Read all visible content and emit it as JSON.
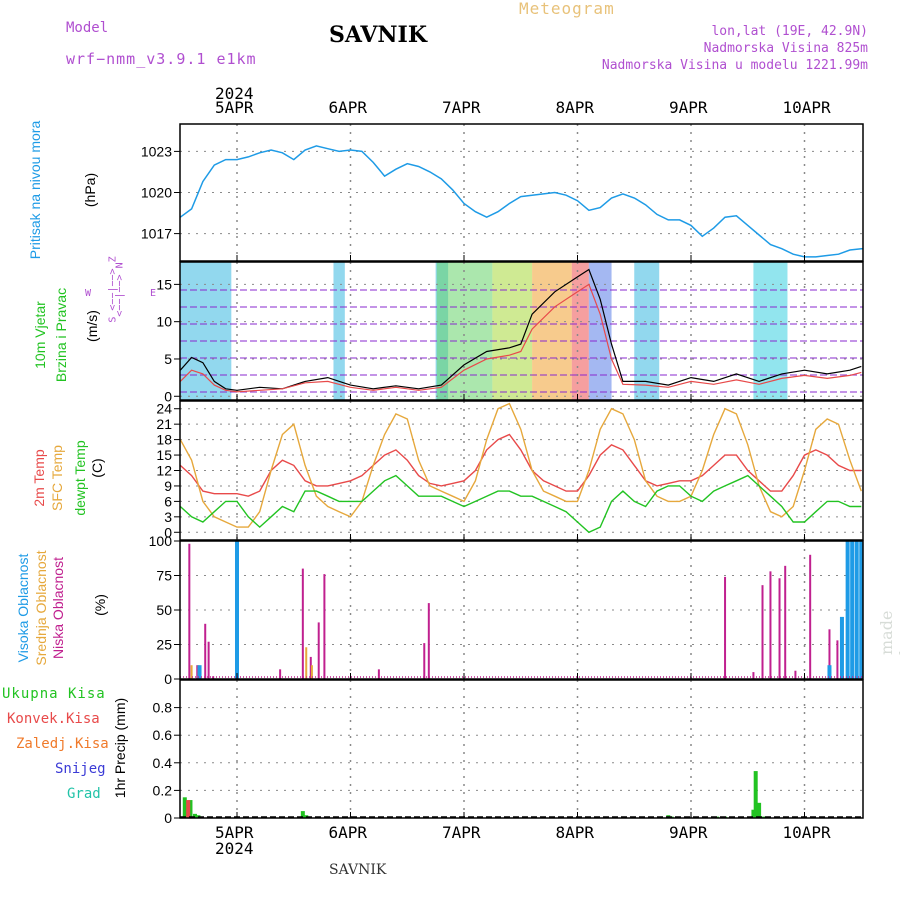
{
  "header": {
    "model_label": "Model",
    "model_name": "wrf−nmm_v3.9.1 e1km",
    "title": "SAVNIK",
    "meteogram_label": "Meteogram",
    "lonlat": "lon,lat (19E, 42.9N)",
    "altitude": "Nadmorska Visina 825m",
    "model_altitude": "Nadmorska Visina u modelu 1221.99m"
  },
  "footer": {
    "station": "SAVNIK",
    "watermark": "made by Angel"
  },
  "axis": {
    "year": "2024",
    "dates": [
      "5APR",
      "6APR",
      "7APR",
      "8APR",
      "9APR",
      "10APR"
    ]
  },
  "panel_labels": {
    "pressure": {
      "name": "Pritisak na nivou mora",
      "unit": "(hPa)"
    },
    "wind": {
      "name1": "10m Vjetar",
      "name2": "Brzina i Pravac",
      "unit": "(m/s)",
      "compass_w": "W",
      "compass_e": "E",
      "compass_n": "<−−|−−> N",
      "compass_s": "S <−−|−−> Z"
    },
    "temp": {
      "l1": "2m Temp",
      "l2": "SFC Temp",
      "l3": "dewpt Temp",
      "unit": "(C)"
    },
    "cloud": {
      "l1": "Visoka Oblacnost",
      "l2": "Srednja Oblacnost",
      "l3": "Niska Oblacnost",
      "unit": "(%)"
    },
    "precip": {
      "l1": "Ukupna Kisa",
      "l2": "Konvek.Kisa",
      "l3": "Zaledj.Kisa",
      "l4": "Snijeg",
      "l5": "Grad",
      "unit": "1hr Precip (mm)"
    }
  },
  "colors": {
    "pressure": "#1e9be6",
    "t2m": "#e84a4a",
    "sfc": "#e6a83c",
    "dew": "#22c322",
    "high_cloud": "#1e9be6",
    "mid_cloud": "#e6a83c",
    "low_cloud": "#c0208f",
    "total_rain": "#22c322",
    "conv_rain": "#e84a4a",
    "frz_rain": "#f07a2a",
    "snow": "#3b3bd6",
    "hail": "#22c3a8"
  },
  "chart_data": [
    {
      "type": "line",
      "panel": "pressure",
      "ylim": [
        1015,
        1025
      ],
      "yticks": [
        "1017",
        "1020",
        "1023"
      ],
      "x": [
        -0.5,
        -0.4,
        -0.3,
        -0.2,
        -0.1,
        0,
        0.1,
        0.2,
        0.3,
        0.4,
        0.5,
        0.6,
        0.7,
        0.8,
        0.9,
        1.0,
        1.1,
        1.2,
        1.3,
        1.4,
        1.5,
        1.6,
        1.7,
        1.8,
        1.9,
        2.0,
        2.1,
        2.2,
        2.3,
        2.4,
        2.5,
        2.6,
        2.7,
        2.8,
        2.9,
        3.0,
        3.1,
        3.2,
        3.3,
        3.4,
        3.5,
        3.6,
        3.7,
        3.8,
        3.9,
        4.0,
        4.1,
        4.2,
        4.3,
        4.4,
        4.5,
        4.6,
        4.7,
        4.8,
        4.9,
        5.0,
        5.1,
        5.2,
        5.3,
        5.4,
        5.5,
        5.56
      ],
      "values": [
        1018.2,
        1018.8,
        1020.8,
        1022.0,
        1022.4,
        1022.4,
        1022.6,
        1022.9,
        1023.1,
        1022.9,
        1022.4,
        1023.1,
        1023.4,
        1023.2,
        1023.0,
        1023.1,
        1023.0,
        1022.2,
        1021.2,
        1021.7,
        1022.1,
        1021.9,
        1021.5,
        1021.0,
        1020.2,
        1019.2,
        1018.6,
        1018.2,
        1018.6,
        1019.2,
        1019.7,
        1019.8,
        1019.9,
        1020.0,
        1019.8,
        1019.4,
        1018.7,
        1018.9,
        1019.6,
        1019.9,
        1019.6,
        1019.1,
        1018.4,
        1018.0,
        1018.0,
        1017.6,
        1016.8,
        1017.4,
        1018.2,
        1018.3,
        1017.6,
        1016.9,
        1016.2,
        1015.9,
        1015.5,
        1015.3,
        1015.3,
        1015.4,
        1015.5,
        1015.8,
        1015.9,
        1015.9
      ]
    },
    {
      "type": "line",
      "panel": "wind",
      "ylim": [
        -0.5,
        18
      ],
      "yticks": [
        "0",
        "5",
        "10",
        "15"
      ],
      "x": [
        -0.5,
        -0.4,
        -0.3,
        -0.2,
        -0.1,
        0,
        0.2,
        0.4,
        0.6,
        0.8,
        1.0,
        1.2,
        1.4,
        1.6,
        1.8,
        2.0,
        2.2,
        2.4,
        2.5,
        2.6,
        2.8,
        3.0,
        3.1,
        3.2,
        3.3,
        3.4,
        3.6,
        3.8,
        4.0,
        4.2,
        4.4,
        4.6,
        4.8,
        5.0,
        5.2,
        5.4,
        5.5
      ],
      "series": [
        {
          "values": [
            3.5,
            5.2,
            4.5,
            2.0,
            1.0,
            0.8,
            1.2,
            1.0,
            2.0,
            2.5,
            1.5,
            1.0,
            1.4,
            1.0,
            1.5,
            4.2,
            6.0,
            6.5,
            7.0,
            11,
            14,
            16,
            17,
            13,
            7,
            2,
            2,
            1.5,
            2.5,
            2.0,
            3.0,
            2.0,
            3.0,
            3.5,
            3.0,
            3.5,
            4.0
          ]
        },
        {
          "values": [
            2.0,
            3.5,
            3.0,
            1.5,
            0.8,
            0.6,
            0.8,
            1.0,
            1.8,
            2.0,
            1.2,
            0.8,
            1.2,
            0.8,
            1.2,
            3.5,
            5.0,
            5.5,
            6.0,
            9.0,
            12,
            14,
            15,
            11,
            5,
            1.6,
            1.5,
            1.2,
            2.0,
            1.6,
            2.2,
            1.6,
            2.4,
            2.8,
            2.4,
            2.8,
            3.2
          ]
        }
      ]
    },
    {
      "type": "line",
      "panel": "temp",
      "ylim": [
        -1.5,
        25.5
      ],
      "yticks": [
        "0",
        "3",
        "6",
        "9",
        "12",
        "15",
        "18",
        "21",
        "24"
      ],
      "x": [
        -0.5,
        -0.4,
        -0.3,
        -0.2,
        -0.1,
        0,
        0.1,
        0.2,
        0.3,
        0.4,
        0.5,
        0.6,
        0.7,
        0.8,
        0.9,
        1.0,
        1.1,
        1.2,
        1.3,
        1.4,
        1.5,
        1.6,
        1.7,
        1.8,
        1.9,
        2.0,
        2.1,
        2.2,
        2.3,
        2.4,
        2.5,
        2.6,
        2.7,
        2.8,
        2.9,
        3.0,
        3.1,
        3.2,
        3.3,
        3.4,
        3.5,
        3.6,
        3.7,
        3.8,
        3.9,
        4.0,
        4.1,
        4.2,
        4.3,
        4.4,
        4.5,
        4.6,
        4.7,
        4.8,
        4.9,
        5.0,
        5.1,
        5.2,
        5.3,
        5.4,
        5.5
      ],
      "series": [
        {
          "name": "2m Temp",
          "values": [
            13,
            11,
            8,
            7.5,
            7.5,
            7.5,
            7,
            8,
            12,
            14,
            13,
            10,
            9,
            9,
            9.5,
            10,
            11,
            13,
            15,
            16,
            14,
            11,
            9.5,
            9,
            9.5,
            10,
            12,
            16,
            18,
            19,
            16,
            12,
            10,
            9,
            8,
            8,
            11,
            15,
            17,
            16,
            13,
            10,
            9,
            9.5,
            10,
            10,
            11,
            13,
            15,
            15,
            12,
            10,
            8,
            8,
            11,
            15,
            16,
            15,
            13,
            12,
            12
          ]
        },
        {
          "name": "SFC Temp",
          "values": [
            18,
            14,
            6,
            3,
            2,
            1,
            1,
            4,
            12,
            19,
            21,
            13,
            7,
            5,
            4,
            3,
            6,
            13,
            19,
            23,
            22,
            14,
            9,
            8,
            7,
            6,
            10,
            18,
            24,
            25,
            20,
            12,
            8,
            7,
            6,
            6,
            12,
            20,
            24,
            23,
            18,
            10,
            7,
            6,
            6,
            7,
            12,
            19,
            24,
            23,
            17,
            9,
            4,
            3,
            5,
            12,
            20,
            22,
            21,
            14,
            8
          ]
        },
        {
          "name": "dewpt Temp",
          "values": [
            5,
            3,
            2,
            4,
            6,
            6,
            3,
            1,
            3,
            5,
            4,
            8,
            8,
            7,
            6,
            6,
            6,
            8,
            10,
            11,
            9,
            7,
            7,
            7,
            6,
            5,
            6,
            7,
            8,
            8,
            7,
            7,
            6,
            5,
            4,
            2,
            0,
            1,
            6,
            8,
            6,
            5,
            8,
            9,
            9,
            7,
            6,
            8,
            9,
            10,
            11,
            9,
            7,
            5,
            2,
            2,
            4,
            6,
            6,
            5,
            5
          ]
        }
      ]
    },
    {
      "type": "bar",
      "panel": "cloud",
      "ylim": [
        0,
        100
      ],
      "yticks": [
        "0",
        "25",
        "50",
        "75",
        "100"
      ],
      "series": [
        {
          "name": "Niska Oblacnost",
          "x": [
            -0.42,
            -0.35,
            -0.28,
            -0.25,
            -0.21,
            0.38,
            0.58,
            0.65,
            0.72,
            0.77,
            1.25,
            1.65,
            1.69,
            4.3,
            4.55,
            4.63,
            4.7,
            4.78,
            4.83,
            4.92,
            5.05,
            5.22,
            5.29,
            5.38,
            5.46
          ],
          "values": [
            98,
            10,
            40,
            27,
            2,
            7,
            80,
            16,
            41,
            76,
            7,
            26,
            55,
            74,
            5,
            68,
            78,
            73,
            82,
            6,
            90,
            36,
            28,
            8,
            10
          ]
        },
        {
          "name": "Srednja Oblacnost",
          "x": [
            -0.4,
            -0.34,
            0.61,
            0.66
          ],
          "values": [
            10,
            10,
            23,
            10
          ]
        },
        {
          "name": "Visoka Oblacnost",
          "x": [
            -0.33,
            0.0,
            5.22,
            5.33,
            5.38,
            5.42,
            5.46,
            5.5
          ],
          "values": [
            10,
            100,
            10,
            45,
            100,
            100,
            100,
            100
          ]
        }
      ]
    },
    {
      "type": "bar",
      "panel": "precip",
      "ylim": [
        0,
        1.0
      ],
      "yticks": [
        "0",
        "0.2",
        "0.4",
        "0.6",
        "0.8"
      ],
      "series": [
        {
          "name": "Ukupna Kisa",
          "x": [
            -0.46,
            -0.41,
            -0.37,
            -0.34,
            0.58,
            0.61,
            3.8,
            3.83,
            4.23,
            4.3,
            4.55,
            4.57,
            4.6,
            4.63,
            4.66
          ],
          "values": [
            0.15,
            0.13,
            0.03,
            0.02,
            0.05,
            0.02,
            0.02,
            0.01,
            0.01,
            0.01,
            0.06,
            0.34,
            0.11,
            0.01,
            0.01
          ]
        },
        {
          "name": "Konvek.Kisa",
          "x": [
            -0.43
          ],
          "values": [
            0.13
          ]
        }
      ]
    }
  ]
}
